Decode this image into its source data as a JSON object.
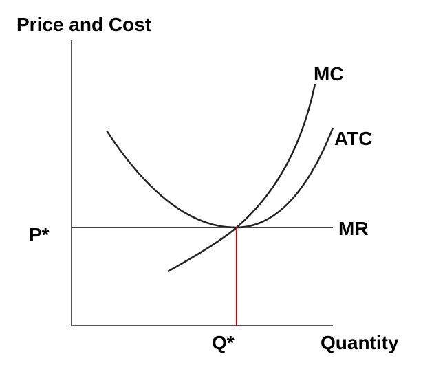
{
  "diagram": {
    "y_axis_label": "Price and Cost",
    "x_axis_label": "Quantity",
    "price_marker": "P*",
    "quantity_marker": "Q*",
    "curves": {
      "mc": {
        "label": "MC"
      },
      "atc": {
        "label": "ATC"
      },
      "mr": {
        "label": "MR"
      }
    },
    "colors": {
      "axis": "#555555",
      "curve": "#222222",
      "mr_line": "#444444",
      "q_star_line": "#cc0000",
      "text": "#000000"
    }
  }
}
